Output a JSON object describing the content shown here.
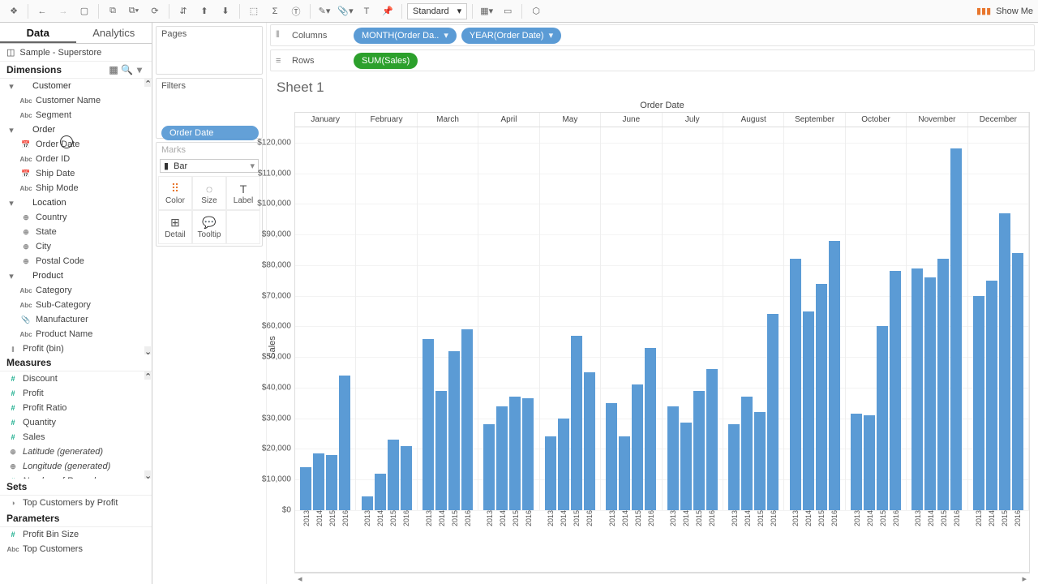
{
  "toolbar": {
    "standard_label": "Standard",
    "showme_label": "Show Me"
  },
  "side": {
    "tab_data": "Data",
    "tab_analytics": "Analytics",
    "datasource": "Sample - Superstore"
  },
  "dimensions": {
    "title": "Dimensions",
    "groups": [
      {
        "name": "Customer",
        "items": [
          {
            "type": "abc",
            "label": "Customer Name"
          },
          {
            "type": "abc",
            "label": "Segment"
          }
        ]
      },
      {
        "name": "Order",
        "items": [
          {
            "type": "date",
            "label": "Order Date"
          },
          {
            "type": "abc",
            "label": "Order ID"
          },
          {
            "type": "date",
            "label": "Ship Date"
          },
          {
            "type": "abc",
            "label": "Ship Mode"
          }
        ]
      },
      {
        "name": "Location",
        "items": [
          {
            "type": "geo",
            "label": "Country"
          },
          {
            "type": "geo",
            "label": "State"
          },
          {
            "type": "geo",
            "label": "City"
          },
          {
            "type": "geo",
            "label": "Postal Code"
          }
        ]
      },
      {
        "name": "Product",
        "items": [
          {
            "type": "abc",
            "label": "Category"
          },
          {
            "type": "abc",
            "label": "Sub-Category"
          },
          {
            "type": "clip",
            "label": "Manufacturer"
          },
          {
            "type": "abc",
            "label": "Product Name"
          }
        ]
      }
    ],
    "extra": {
      "type": "bin",
      "label": "Profit (bin)"
    }
  },
  "measures": {
    "title": "Measures",
    "items": [
      {
        "type": "num",
        "label": "Discount"
      },
      {
        "type": "num",
        "label": "Profit"
      },
      {
        "type": "num",
        "label": "Profit Ratio"
      },
      {
        "type": "num",
        "label": "Quantity"
      },
      {
        "type": "num",
        "label": "Sales"
      },
      {
        "type": "geo",
        "label": "Latitude (generated)",
        "italic": true
      },
      {
        "type": "geo",
        "label": "Longitude (generated)",
        "italic": true
      },
      {
        "type": "num",
        "label": "Number of Records",
        "italic": true
      }
    ]
  },
  "sets": {
    "title": "Sets",
    "items": [
      {
        "type": "set",
        "label": "Top Customers by Profit"
      }
    ]
  },
  "parameters": {
    "title": "Parameters",
    "items": [
      {
        "type": "num",
        "label": "Profit Bin Size"
      },
      {
        "type": "abc",
        "label": "Top Customers"
      }
    ]
  },
  "shelves": {
    "pages": "Pages",
    "filters": "Filters",
    "marks": "Marks",
    "mark_type": "Bar",
    "color": "Color",
    "size": "Size",
    "label": "Label",
    "detail": "Detail",
    "tooltip": "Tooltip",
    "drag_label": "Order Date"
  },
  "rows_cols": {
    "columns": "Columns",
    "rows": "Rows",
    "col_pills": [
      "MONTH(Order Da..",
      "YEAR(Order Date)"
    ],
    "row_pills": [
      "SUM(Sales)"
    ]
  },
  "sheet": {
    "title": "Sheet 1",
    "axis_top": "Order Date",
    "y_axis": "Sales"
  },
  "chart": {
    "bar_color": "#5b9bd5",
    "ymax": 125000,
    "yticks": [
      0,
      10000,
      20000,
      30000,
      40000,
      50000,
      60000,
      70000,
      80000,
      90000,
      100000,
      110000,
      120000
    ],
    "ytick_labels": [
      "$0",
      "$10,000",
      "$20,000",
      "$30,000",
      "$40,000",
      "$50,000",
      "$60,000",
      "$70,000",
      "$80,000",
      "$90,000",
      "$100,000",
      "$110,000",
      "$120,000"
    ],
    "months": [
      "January",
      "February",
      "March",
      "April",
      "May",
      "June",
      "July",
      "August",
      "September",
      "October",
      "November",
      "December"
    ],
    "years": [
      "2013",
      "2014",
      "2015",
      "2016"
    ],
    "values": {
      "January": [
        14000,
        18500,
        18000,
        44000
      ],
      "February": [
        4500,
        12000,
        23000,
        21000
      ],
      "March": [
        56000,
        39000,
        52000,
        59000
      ],
      "April": [
        28000,
        34000,
        37000,
        36500
      ],
      "May": [
        24000,
        30000,
        57000,
        45000
      ],
      "June": [
        35000,
        24000,
        41000,
        53000
      ],
      "July": [
        34000,
        28500,
        39000,
        46000
      ],
      "August": [
        28000,
        37000,
        32000,
        64000
      ],
      "September": [
        82000,
        65000,
        74000,
        88000
      ],
      "October": [
        31500,
        31000,
        60000,
        78000
      ],
      "November": [
        79000,
        76000,
        82000,
        118000
      ],
      "December": [
        70000,
        75000,
        97000,
        84000
      ]
    }
  }
}
